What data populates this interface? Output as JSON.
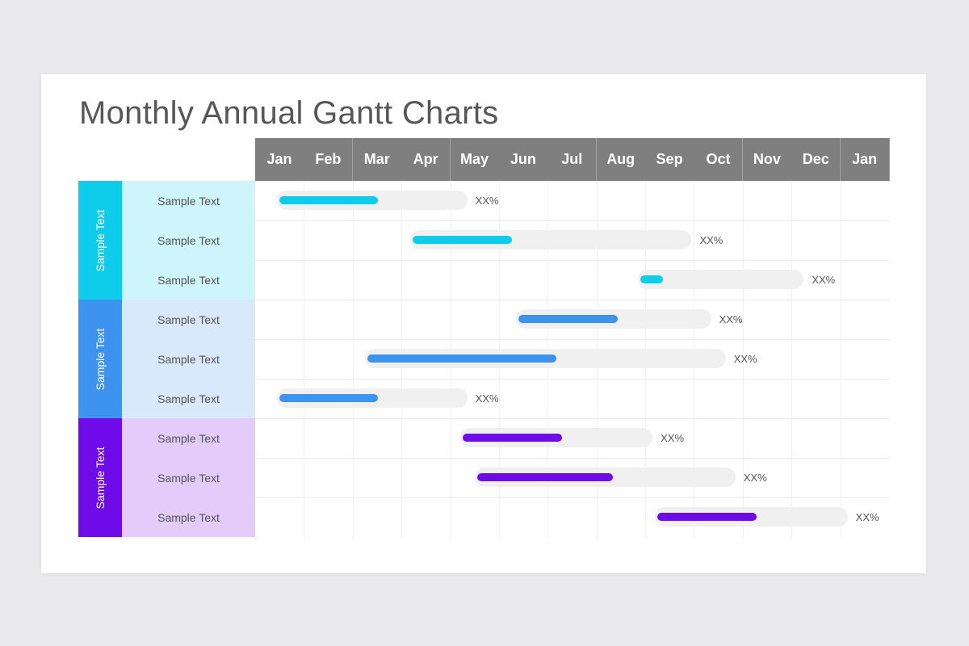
{
  "title": "Monthly Annual Gantt Charts",
  "chart_data": {
    "type": "bar",
    "subtype": "gantt",
    "title": "Monthly Annual Gantt Charts",
    "months": [
      "Jan",
      "Feb",
      "Mar",
      "Apr",
      "May",
      "Jun",
      "Jul",
      "Aug",
      "Sep",
      "Oct",
      "Nov",
      "Dec",
      "Jan"
    ],
    "groups": [
      {
        "label": "Sample Text",
        "color": "#0ecdea",
        "light_color": "#cdf5fb",
        "tasks": [
          {
            "label": "Sample Text",
            "start": 0.45,
            "end": 4.35,
            "progress": 0.53,
            "value_label": "XX%"
          },
          {
            "label": "Sample Text",
            "start": 3.18,
            "end": 8.95,
            "progress": 0.36,
            "value_label": "XX%"
          },
          {
            "label": "Sample Text",
            "start": 7.85,
            "end": 11.25,
            "progress": 0.14,
            "value_label": "XX%"
          }
        ]
      },
      {
        "label": "Sample Text",
        "color": "#3d93f0",
        "light_color": "#d9e9fc",
        "tasks": [
          {
            "label": "Sample Text",
            "start": 5.35,
            "end": 9.35,
            "progress": 0.52,
            "value_label": "XX%"
          },
          {
            "label": "Sample Text",
            "start": 2.25,
            "end": 9.65,
            "progress": 0.53,
            "value_label": "XX%"
          },
          {
            "label": "Sample Text",
            "start": 0.45,
            "end": 4.35,
            "progress": 0.53,
            "value_label": "XX%"
          }
        ]
      },
      {
        "label": "Sample Text",
        "color": "#6f0be8",
        "light_color": "#e4ccfa",
        "tasks": [
          {
            "label": "Sample Text",
            "start": 4.2,
            "end": 8.15,
            "progress": 0.53,
            "value_label": "XX%"
          },
          {
            "label": "Sample Text",
            "start": 4.5,
            "end": 9.85,
            "progress": 0.53,
            "value_label": "XX%"
          },
          {
            "label": "Sample Text",
            "start": 8.2,
            "end": 12.15,
            "progress": 0.53,
            "value_label": "XX%"
          }
        ]
      }
    ],
    "grid": true
  }
}
